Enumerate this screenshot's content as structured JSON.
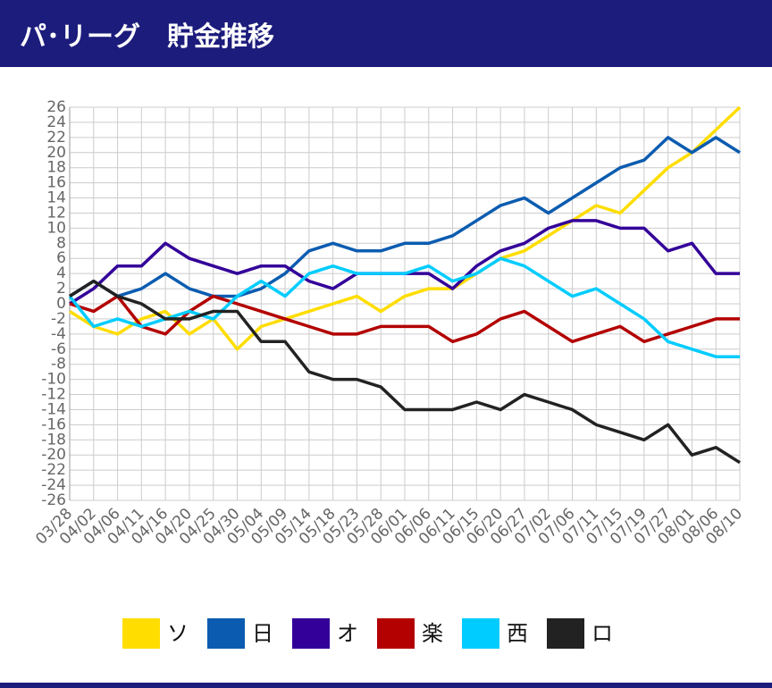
{
  "header": {
    "title": "パ･リーグ　貯金推移"
  },
  "chart_data": {
    "type": "line",
    "categories": [
      "03/28",
      "04/02",
      "04/06",
      "04/11",
      "04/16",
      "04/20",
      "04/25",
      "04/30",
      "05/04",
      "05/09",
      "05/14",
      "05/18",
      "05/23",
      "05/28",
      "06/01",
      "06/06",
      "06/11",
      "06/15",
      "06/20",
      "06/27",
      "07/02",
      "07/06",
      "07/11",
      "07/15",
      "07/19",
      "07/27",
      "08/01",
      "08/06",
      "08/10"
    ],
    "series": [
      {
        "name": "ソ",
        "color": "#ffdd00",
        "values": [
          -1,
          -3,
          -4,
          -2,
          -1,
          -4,
          -2,
          -6,
          -3,
          -2,
          -1,
          0,
          1,
          -1,
          1,
          2,
          2,
          4,
          6,
          7,
          9,
          11,
          13,
          12,
          15,
          18,
          20,
          23,
          26
        ]
      },
      {
        "name": "日",
        "color": "#0b5cb0",
        "values": [
          1,
          3,
          1,
          2,
          4,
          2,
          1,
          1,
          2,
          4,
          7,
          8,
          7,
          7,
          8,
          8,
          9,
          11,
          13,
          14,
          12,
          14,
          16,
          18,
          19,
          22,
          20,
          22,
          20
        ]
      },
      {
        "name": "オ",
        "color": "#330099",
        "values": [
          0,
          2,
          5,
          5,
          8,
          6,
          5,
          4,
          5,
          5,
          3,
          2,
          4,
          4,
          4,
          4,
          2,
          5,
          7,
          8,
          10,
          11,
          11,
          10,
          10,
          7,
          8,
          4,
          4
        ]
      },
      {
        "name": "楽",
        "color": "#b30000",
        "values": [
          0,
          -1,
          1,
          -3,
          -4,
          -1,
          1,
          0,
          -1,
          -2,
          -3,
          -4,
          -4,
          -3,
          -3,
          -3,
          -5,
          -4,
          -2,
          -1,
          -3,
          -5,
          -4,
          -3,
          -5,
          -4,
          -3,
          -2,
          -2
        ]
      },
      {
        "name": "西",
        "color": "#00ccff",
        "values": [
          1,
          -3,
          -2,
          -3,
          -2,
          -1,
          -2,
          1,
          3,
          1,
          4,
          5,
          4,
          4,
          4,
          5,
          3,
          4,
          6,
          5,
          3,
          1,
          2,
          0,
          -2,
          -5,
          -6,
          -7,
          -7
        ]
      },
      {
        "name": "ロ",
        "color": "#222222",
        "values": [
          1,
          3,
          1,
          0,
          -2,
          -2,
          -1,
          -1,
          -5,
          -5,
          -9,
          -10,
          -10,
          -11,
          -14,
          -14,
          -14,
          -13,
          -14,
          -12,
          -13,
          -14,
          -16,
          -17,
          -18,
          -16,
          -20,
          -19,
          -21
        ]
      }
    ],
    "ylim": [
      -26,
      26
    ],
    "yticks": [
      -26,
      -24,
      -22,
      -20,
      -18,
      -16,
      -14,
      -12,
      -10,
      -8,
      -6,
      -4,
      -2,
      0,
      2,
      4,
      6,
      8,
      10,
      12,
      14,
      16,
      18,
      20,
      22,
      24,
      26
    ],
    "grid": true
  }
}
